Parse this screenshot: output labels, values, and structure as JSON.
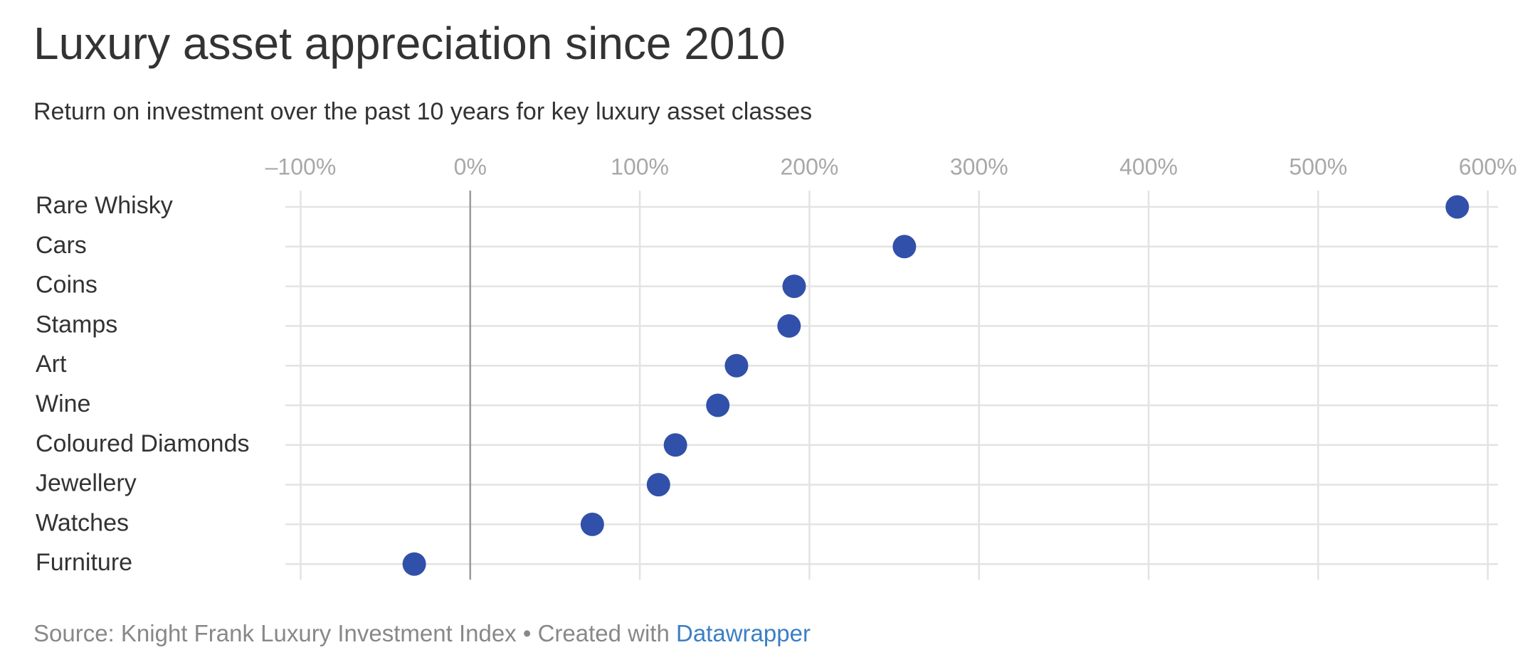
{
  "chart_data": {
    "type": "dot",
    "title": "Luxury asset appreciation since 2010",
    "subtitle": "Return on investment over the past 10 years for key luxury asset classes",
    "categories": [
      "Rare Whisky",
      "Cars",
      "Coins",
      "Stamps",
      "Art",
      "Wine",
      "Coloured Diamonds",
      "Jewellery",
      "Watches",
      "Furniture"
    ],
    "values": [
      582,
      256,
      191,
      188,
      157,
      146,
      121,
      111,
      72,
      -33
    ],
    "color": "#3150a9",
    "xlim": [
      -109,
      606
    ],
    "xticks": [
      {
        "value": -100,
        "label": "–100%"
      },
      {
        "value": 0,
        "label": "0%"
      },
      {
        "value": 100,
        "label": "100%"
      },
      {
        "value": 200,
        "label": "200%"
      },
      {
        "value": 300,
        "label": "300%"
      },
      {
        "value": 400,
        "label": "400%"
      },
      {
        "value": 500,
        "label": "500%"
      },
      {
        "value": 600,
        "label": "600%"
      }
    ],
    "grid": true,
    "zero_line": true,
    "source": "Source: Knight Frank Luxury Investment Index • Created with",
    "credit": "Datawrapper"
  }
}
